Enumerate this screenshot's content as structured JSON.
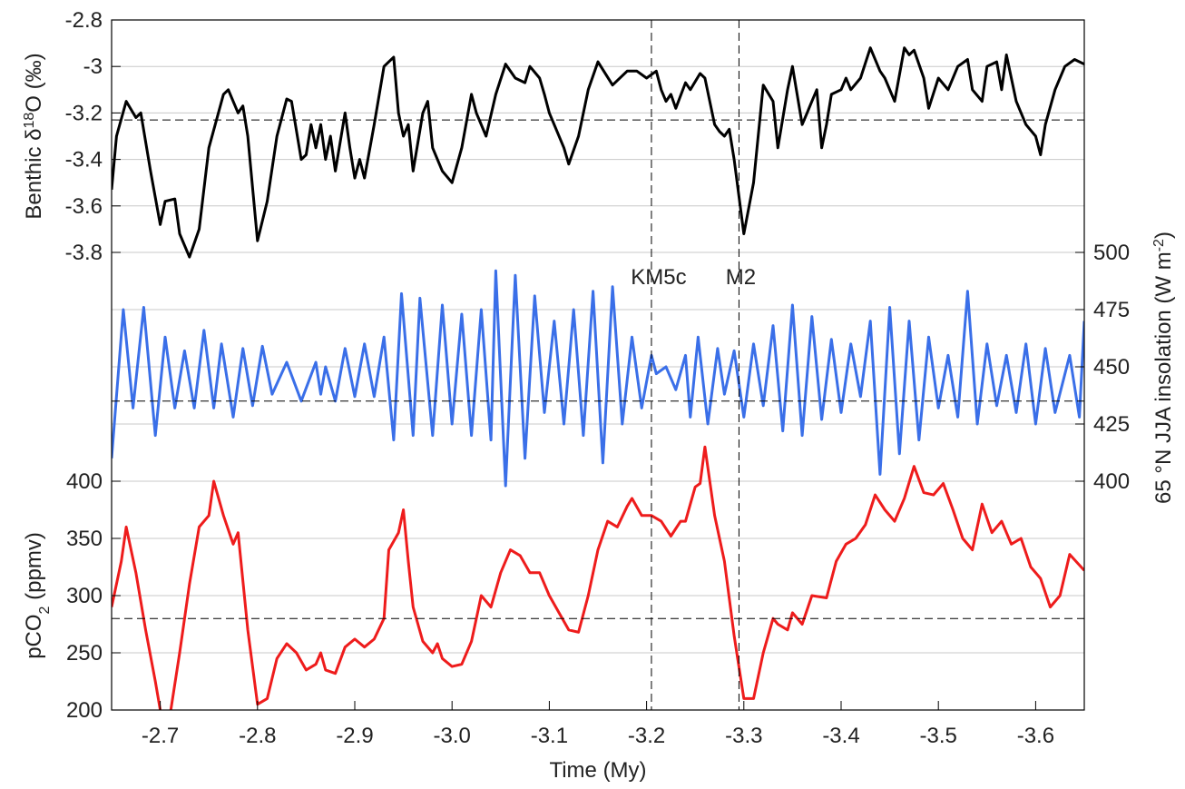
{
  "chart_data": [
    {
      "type": "line",
      "side": "left",
      "color": "#000000",
      "ylabel": [
        {
          "text": "Benthic δ"
        },
        {
          "text": "18",
          "shift": "super"
        },
        {
          "text": "O (‰)"
        }
      ],
      "xlim": [
        -2.65,
        -3.65
      ],
      "ylim": [
        -3.8,
        -2.8
      ],
      "yticks": [
        -2.8,
        -3,
        -3.2,
        -3.4,
        -3.6,
        -3.8
      ],
      "hline": -3.23,
      "x": [
        -2.65,
        -2.655,
        -2.665,
        -2.675,
        -2.68,
        -2.69,
        -2.7,
        -2.705,
        -2.715,
        -2.72,
        -2.73,
        -2.74,
        -2.75,
        -2.765,
        -2.77,
        -2.78,
        -2.785,
        -2.79,
        -2.8,
        -2.81,
        -2.82,
        -2.83,
        -2.835,
        -2.845,
        -2.85,
        -2.855,
        -2.86,
        -2.865,
        -2.87,
        -2.875,
        -2.88,
        -2.89,
        -2.895,
        -2.9,
        -2.905,
        -2.91,
        -2.92,
        -2.93,
        -2.935,
        -2.94,
        -2.945,
        -2.95,
        -2.955,
        -2.96,
        -2.97,
        -2.975,
        -2.98,
        -2.985,
        -2.99,
        -3.0,
        -3.01,
        -3.02,
        -3.025,
        -3.035,
        -3.045,
        -3.055,
        -3.065,
        -3.075,
        -3.08,
        -3.09,
        -3.095,
        -3.1,
        -3.115,
        -3.12,
        -3.13,
        -3.14,
        -3.15,
        -3.165,
        -3.18,
        -3.19,
        -3.2,
        -3.21,
        -3.215,
        -3.22,
        -3.225,
        -3.23,
        -3.24,
        -3.245,
        -3.255,
        -3.26,
        -3.27,
        -3.275,
        -3.28,
        -3.285,
        -3.29,
        -3.3,
        -3.31,
        -3.32,
        -3.33,
        -3.335,
        -3.345,
        -3.35,
        -3.36,
        -3.365,
        -3.37,
        -3.375,
        -3.38,
        -3.385,
        -3.39,
        -3.4,
        -3.405,
        -3.41,
        -3.42,
        -3.43,
        -3.44,
        -3.445,
        -3.455,
        -3.465,
        -3.47,
        -3.475,
        -3.485,
        -3.49,
        -3.5,
        -3.51,
        -3.52,
        -3.53,
        -3.535,
        -3.545,
        -3.55,
        -3.56,
        -3.565,
        -3.57,
        -3.58,
        -3.59,
        -3.6,
        -3.605,
        -3.61,
        -3.62,
        -3.63,
        -3.64,
        -3.65
      ],
      "values": [
        -3.53,
        -3.3,
        -3.15,
        -3.22,
        -3.2,
        -3.45,
        -3.68,
        -3.58,
        -3.57,
        -3.72,
        -3.82,
        -3.7,
        -3.35,
        -3.12,
        -3.1,
        -3.2,
        -3.17,
        -3.3,
        -3.75,
        -3.58,
        -3.3,
        -3.14,
        -3.15,
        -3.4,
        -3.38,
        -3.25,
        -3.35,
        -3.25,
        -3.4,
        -3.3,
        -3.45,
        -3.2,
        -3.35,
        -3.48,
        -3.4,
        -3.48,
        -3.25,
        -3.0,
        -2.98,
        -2.96,
        -3.2,
        -3.3,
        -3.25,
        -3.45,
        -3.2,
        -3.15,
        -3.35,
        -3.4,
        -3.45,
        -3.5,
        -3.35,
        -3.12,
        -3.2,
        -3.3,
        -3.12,
        -2.99,
        -3.05,
        -3.07,
        -3.0,
        -3.05,
        -3.12,
        -3.2,
        -3.35,
        -3.42,
        -3.3,
        -3.1,
        -2.98,
        -3.08,
        -3.02,
        -3.02,
        -3.05,
        -3.02,
        -3.1,
        -3.15,
        -3.12,
        -3.18,
        -3.07,
        -3.1,
        -3.03,
        -3.05,
        -3.25,
        -3.28,
        -3.3,
        -3.27,
        -3.4,
        -3.72,
        -3.5,
        -3.08,
        -3.15,
        -3.35,
        -3.1,
        -3.0,
        -3.25,
        -3.2,
        -3.15,
        -3.1,
        -3.35,
        -3.25,
        -3.12,
        -3.1,
        -3.05,
        -3.1,
        -3.05,
        -2.92,
        -3.02,
        -3.05,
        -3.15,
        -2.92,
        -2.95,
        -2.93,
        -3.05,
        -3.18,
        -3.05,
        -3.1,
        -3.0,
        -2.97,
        -3.1,
        -3.15,
        -3.0,
        -2.98,
        -3.1,
        -2.95,
        -3.15,
        -3.25,
        -3.3,
        -3.38,
        -3.25,
        -3.1,
        -3.0,
        -2.97,
        -2.99
      ]
    },
    {
      "type": "line",
      "side": "right",
      "color": "#3a6fe8",
      "ylabel": [
        {
          "text": "65 °N JJA insolation (W m"
        },
        {
          "text": "-2",
          "shift": "super"
        },
        {
          "text": ")"
        }
      ],
      "xlim": [
        -2.65,
        -3.65
      ],
      "ylim": [
        400,
        500
      ],
      "yticks": [
        400,
        425,
        450,
        475,
        500
      ],
      "hline": 435,
      "events": [
        {
          "x": -3.205,
          "label": "KM5c"
        },
        {
          "x": -3.295,
          "label": "M2"
        }
      ],
      "x": [
        -2.65,
        -2.662,
        -2.672,
        -2.683,
        -2.695,
        -2.705,
        -2.715,
        -2.725,
        -2.735,
        -2.745,
        -2.755,
        -2.763,
        -2.775,
        -2.785,
        -2.795,
        -2.805,
        -2.815,
        -2.83,
        -2.845,
        -2.86,
        -2.865,
        -2.87,
        -2.88,
        -2.89,
        -2.9,
        -2.91,
        -2.92,
        -2.93,
        -2.94,
        -2.948,
        -2.96,
        -2.967,
        -2.98,
        -2.99,
        -3.0,
        -3.01,
        -3.02,
        -3.03,
        -3.04,
        -3.045,
        -3.055,
        -3.065,
        -3.075,
        -3.085,
        -3.095,
        -3.105,
        -3.115,
        -3.125,
        -3.135,
        -3.145,
        -3.155,
        -3.165,
        -3.175,
        -3.185,
        -3.195,
        -3.205,
        -3.21,
        -3.22,
        -3.23,
        -3.24,
        -3.245,
        -3.253,
        -3.263,
        -3.273,
        -3.28,
        -3.29,
        -3.3,
        -3.31,
        -3.32,
        -3.33,
        -3.34,
        -3.35,
        -3.36,
        -3.37,
        -3.38,
        -3.39,
        -3.4,
        -3.41,
        -3.42,
        -3.43,
        -3.44,
        -3.45,
        -3.46,
        -3.47,
        -3.48,
        -3.49,
        -3.5,
        -3.51,
        -3.52,
        -3.53,
        -3.54,
        -3.55,
        -3.56,
        -3.57,
        -3.58,
        -3.59,
        -3.6,
        -3.61,
        -3.62,
        -3.635,
        -3.645,
        -3.65
      ],
      "values": [
        410,
        475,
        432,
        476,
        420,
        463,
        432,
        457,
        432,
        466,
        432,
        460,
        428,
        458,
        433,
        459,
        438,
        452,
        435,
        452,
        438,
        450,
        435,
        458,
        437,
        460,
        437,
        463,
        418,
        482,
        420,
        480,
        420,
        477,
        425,
        473,
        420,
        475,
        418,
        492,
        398,
        490,
        410,
        481,
        430,
        470,
        425,
        475,
        420,
        483,
        408,
        485,
        425,
        463,
        432,
        455,
        447,
        450,
        440,
        455,
        428,
        463,
        425,
        458,
        438,
        457,
        428,
        460,
        433,
        468,
        422,
        477,
        420,
        472,
        427,
        462,
        430,
        460,
        437,
        470,
        403,
        476,
        412,
        470,
        418,
        463,
        432,
        455,
        428,
        483,
        425,
        460,
        433,
        455,
        430,
        460,
        425,
        458,
        430,
        455,
        428,
        470
      ]
    },
    {
      "type": "line",
      "side": "left",
      "color": "#ee1c1c",
      "ylabel": [
        {
          "text": "pCO"
        },
        {
          "text": "2",
          "shift": "sub"
        },
        {
          "text": " (ppmv)"
        }
      ],
      "xlabel": "Time (My)",
      "xlim": [
        -2.65,
        -3.65
      ],
      "ylim": [
        200,
        400
      ],
      "yticks": [
        200,
        250,
        300,
        350,
        400
      ],
      "hline": 280,
      "xticks": [
        -2.7,
        -2.8,
        -2.9,
        {
          "value": -3,
          "label": "-3.0"
        },
        -3.1,
        -3.2,
        -3.3,
        -3.4,
        -3.5,
        -3.6
      ],
      "x": [
        -2.65,
        -2.66,
        -2.665,
        -2.675,
        -2.685,
        -2.695,
        -2.7,
        -2.71,
        -2.72,
        -2.73,
        -2.74,
        -2.75,
        -2.755,
        -2.765,
        -2.775,
        -2.78,
        -2.79,
        -2.8,
        -2.81,
        -2.82,
        -2.83,
        -2.84,
        -2.85,
        -2.86,
        -2.865,
        -2.87,
        -2.88,
        -2.89,
        -2.9,
        -2.91,
        -2.92,
        -2.93,
        -2.935,
        -2.945,
        -2.95,
        -2.955,
        -2.96,
        -2.97,
        -2.98,
        -2.985,
        -2.99,
        -3.0,
        -3.01,
        -3.02,
        -3.03,
        -3.04,
        -3.05,
        -3.06,
        -3.07,
        -3.08,
        -3.09,
        -3.1,
        -3.11,
        -3.12,
        -3.13,
        -3.14,
        -3.15,
        -3.16,
        -3.17,
        -3.18,
        -3.185,
        -3.195,
        -3.205,
        -3.215,
        -3.225,
        -3.235,
        -3.24,
        -3.245,
        -3.25,
        -3.255,
        -3.26,
        -3.27,
        -3.28,
        -3.29,
        -3.3,
        -3.31,
        -3.32,
        -3.33,
        -3.335,
        -3.345,
        -3.35,
        -3.36,
        -3.37,
        -3.385,
        -3.395,
        -3.405,
        -3.415,
        -3.425,
        -3.435,
        -3.445,
        -3.455,
        -3.465,
        -3.475,
        -3.485,
        -3.495,
        -3.505,
        -3.515,
        -3.525,
        -3.535,
        -3.545,
        -3.555,
        -3.565,
        -3.575,
        -3.585,
        -3.595,
        -3.605,
        -3.615,
        -3.625,
        -3.635,
        -3.65
      ],
      "values": [
        290,
        330,
        360,
        320,
        270,
        225,
        200,
        195,
        250,
        310,
        360,
        370,
        400,
        370,
        345,
        355,
        270,
        205,
        210,
        245,
        258,
        250,
        235,
        240,
        250,
        235,
        232,
        255,
        262,
        255,
        262,
        280,
        340,
        355,
        375,
        330,
        290,
        260,
        250,
        258,
        245,
        238,
        240,
        260,
        300,
        290,
        320,
        340,
        335,
        320,
        320,
        300,
        285,
        270,
        268,
        300,
        340,
        365,
        360,
        378,
        385,
        370,
        370,
        365,
        352,
        365,
        365,
        380,
        395,
        398,
        430,
        370,
        330,
        265,
        210,
        210,
        250,
        280,
        275,
        270,
        285,
        275,
        300,
        298,
        330,
        345,
        350,
        362,
        388,
        375,
        365,
        385,
        413,
        390,
        388,
        398,
        375,
        350,
        340,
        380,
        355,
        365,
        345,
        350,
        325,
        315,
        290,
        300,
        336,
        322
      ]
    }
  ]
}
